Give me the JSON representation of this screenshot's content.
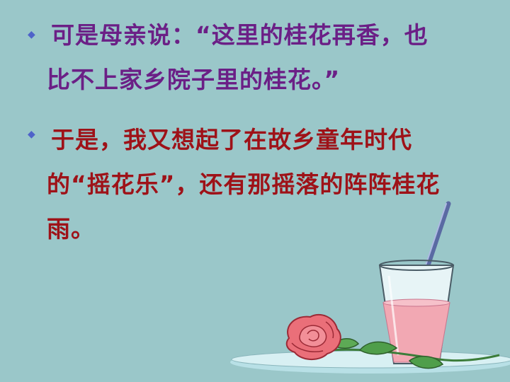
{
  "paragraphs": [
    {
      "bullet_icon": "diamond-bullet-icon",
      "lines": [
        "    可是母亲说：“这里的桂花再香，也",
        "比不上家乡院子里的桂花。”"
      ]
    },
    {
      "bullet_icon": "diamond-bullet-icon",
      "lines": [
        "    于是，我又想起了在故乡童年时代",
        "的“摇花乐”，还有那摇落的阵阵桂花",
        "雨。"
      ]
    }
  ],
  "colors": {
    "background": "#9ac7c9",
    "paragraph1_text": "#6b1f86",
    "paragraph2_text": "#9e1218",
    "bullet": "#4f63c9"
  }
}
